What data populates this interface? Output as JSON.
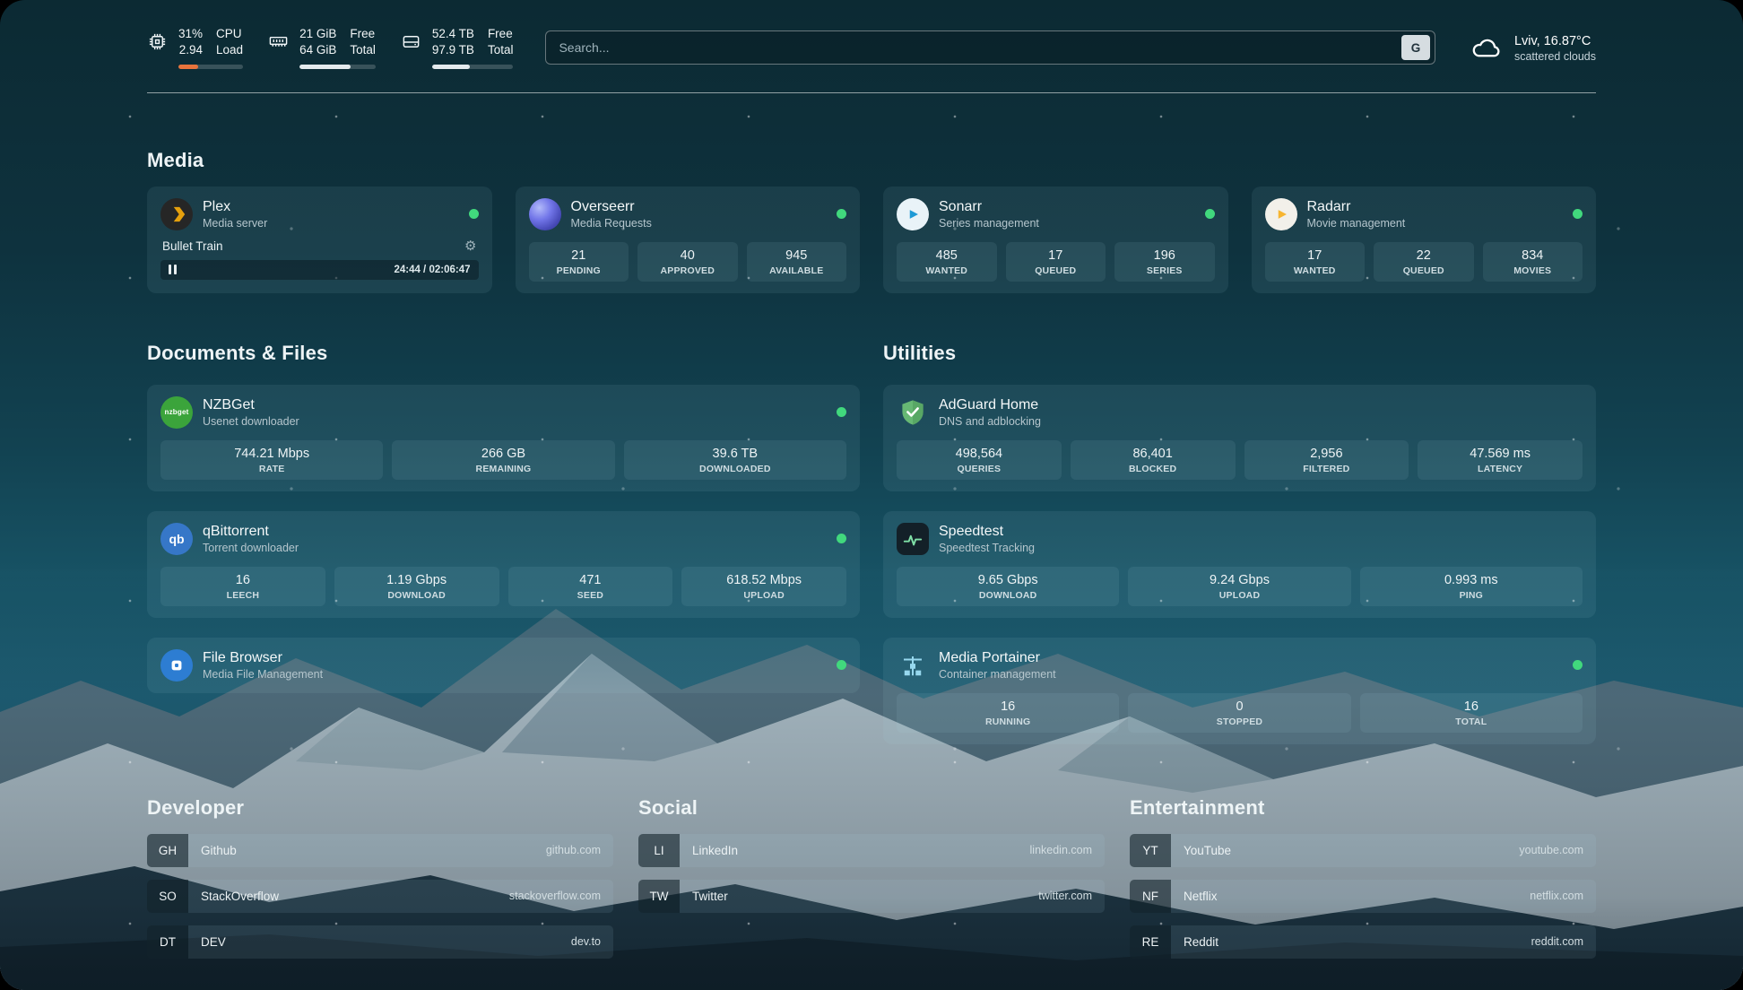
{
  "colors": {
    "status_online": "#41d87d",
    "cpu_bar": "#e8743c",
    "plex_accent": "#e5a00d"
  },
  "topbar": {
    "cpu": {
      "usage": "31%",
      "load": "2.94",
      "label_top": "CPU",
      "label_bottom": "Load",
      "bar_percent": 31
    },
    "memory": {
      "free": "21 GiB",
      "total": "64 GiB",
      "label_top": "Free",
      "label_bottom": "Total",
      "bar_percent": 67
    },
    "disk": {
      "free": "52.4 TB",
      "total": "97.9 TB",
      "label_top": "Free",
      "label_bottom": "Total",
      "bar_percent": 46
    },
    "search": {
      "placeholder": "Search...",
      "provider": "G"
    },
    "weather": {
      "location": "Lviv, 16.87°C",
      "condition": "scattered clouds"
    }
  },
  "sections": {
    "media": {
      "title": "Media"
    },
    "documents": {
      "title": "Documents & Files"
    },
    "utilities": {
      "title": "Utilities"
    },
    "developer": {
      "title": "Developer"
    },
    "social": {
      "title": "Social"
    },
    "entertainment": {
      "title": "Entertainment"
    }
  },
  "icons": {
    "gear": "⚙"
  },
  "services": {
    "plex": {
      "name": "Plex",
      "description": "Media server",
      "status": "online",
      "now_playing": {
        "title": "Bullet Train",
        "time": "24:44 / 02:06:47",
        "progress_percent": 19
      }
    },
    "overseerr": {
      "name": "Overseerr",
      "description": "Media Requests",
      "status": "online",
      "stats": [
        {
          "value": "21",
          "label": "PENDING"
        },
        {
          "value": "40",
          "label": "APPROVED"
        },
        {
          "value": "945",
          "label": "AVAILABLE"
        }
      ]
    },
    "sonarr": {
      "name": "Sonarr",
      "description": "Series management",
      "status": "online",
      "stats": [
        {
          "value": "485",
          "label": "WANTED"
        },
        {
          "value": "17",
          "label": "QUEUED"
        },
        {
          "value": "196",
          "label": "SERIES"
        }
      ]
    },
    "radarr": {
      "name": "Radarr",
      "description": "Movie management",
      "status": "online",
      "stats": [
        {
          "value": "17",
          "label": "WANTED"
        },
        {
          "value": "22",
          "label": "QUEUED"
        },
        {
          "value": "834",
          "label": "MOVIES"
        }
      ]
    },
    "nzbget": {
      "name": "NZBGet",
      "description": "Usenet downloader",
      "status": "online",
      "icon_text": "nzbget",
      "stats": [
        {
          "value": "744.21 Mbps",
          "label": "RATE"
        },
        {
          "value": "266 GB",
          "label": "REMAINING"
        },
        {
          "value": "39.6 TB",
          "label": "DOWNLOADED"
        }
      ]
    },
    "qbittorrent": {
      "name": "qBittorrent",
      "description": "Torrent downloader",
      "status": "online",
      "icon_text": "qb",
      "stats": [
        {
          "value": "16",
          "label": "LEECH"
        },
        {
          "value": "1.19 Gbps",
          "label": "DOWNLOAD"
        },
        {
          "value": "471",
          "label": "SEED"
        },
        {
          "value": "618.52 Mbps",
          "label": "UPLOAD"
        }
      ]
    },
    "filebrowser": {
      "name": "File Browser",
      "description": "Media File Management",
      "status": "online"
    },
    "adguard": {
      "name": "AdGuard Home",
      "description": "DNS and adblocking",
      "stats": [
        {
          "value": "498,564",
          "label": "QUERIES"
        },
        {
          "value": "86,401",
          "label": "BLOCKED"
        },
        {
          "value": "2,956",
          "label": "FILTERED"
        },
        {
          "value": "47.569 ms",
          "label": "LATENCY"
        }
      ]
    },
    "speedtest": {
      "name": "Speedtest",
      "description": "Speedtest Tracking",
      "stats": [
        {
          "value": "9.65 Gbps",
          "label": "DOWNLOAD"
        },
        {
          "value": "9.24 Gbps",
          "label": "UPLOAD"
        },
        {
          "value": "0.993 ms",
          "label": "PING"
        }
      ]
    },
    "portainer": {
      "name": "Media Portainer",
      "description": "Container management",
      "status": "online",
      "stats": [
        {
          "value": "16",
          "label": "RUNNING"
        },
        {
          "value": "0",
          "label": "STOPPED"
        },
        {
          "value": "16",
          "label": "TOTAL"
        }
      ]
    }
  },
  "bookmarks": {
    "developer": [
      {
        "abbr": "GH",
        "name": "Github",
        "domain": "github.com"
      },
      {
        "abbr": "SO",
        "name": "StackOverflow",
        "domain": "stackoverflow.com"
      },
      {
        "abbr": "DT",
        "name": "DEV",
        "domain": "dev.to"
      }
    ],
    "social": [
      {
        "abbr": "LI",
        "name": "LinkedIn",
        "domain": "linkedin.com"
      },
      {
        "abbr": "TW",
        "name": "Twitter",
        "domain": "twitter.com"
      }
    ],
    "entertainment": [
      {
        "abbr": "YT",
        "name": "YouTube",
        "domain": "youtube.com"
      },
      {
        "abbr": "NF",
        "name": "Netflix",
        "domain": "netflix.com"
      },
      {
        "abbr": "RE",
        "name": "Reddit",
        "domain": "reddit.com"
      }
    ]
  }
}
